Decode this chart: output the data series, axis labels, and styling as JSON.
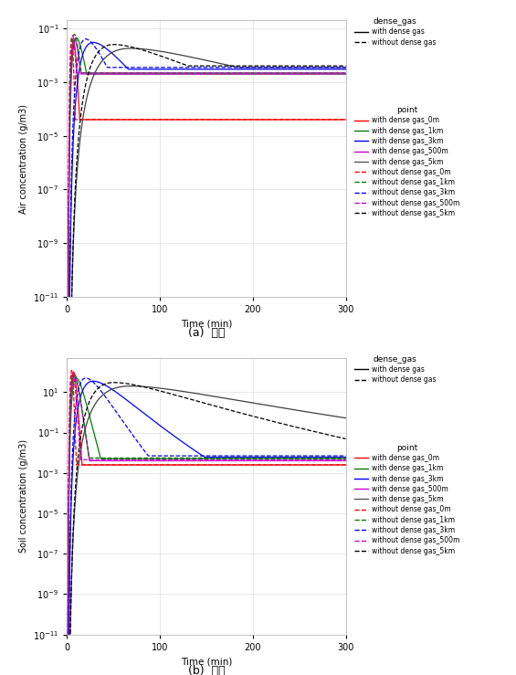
{
  "title_a": "(a)  대기",
  "title_b": "(b)  토양",
  "xlabel": "Time (min)",
  "ylabel_a": "Air concentration (g/m3)",
  "ylabel_b": "Soil concentration (g/m3)",
  "xmax": 300,
  "colors": {
    "0m": "#FF0000",
    "1km": "#008000",
    "3km": "#0000FF",
    "500m": "#CC00CC",
    "5km": "#000000"
  },
  "legend_dense_gas": [
    {
      "label": "with dense gas",
      "ls": "solid",
      "color": "#000000"
    },
    {
      "label": "without dense gas",
      "ls": "dashed",
      "color": "#000000"
    }
  ],
  "legend_points": [
    {
      "label": "with dense gas_0m",
      "color": "#FF0000",
      "ls": "solid"
    },
    {
      "label": "with dense gas_1km",
      "color": "#008000",
      "ls": "solid"
    },
    {
      "label": "with dense gas_3km",
      "color": "#0000FF",
      "ls": "solid"
    },
    {
      "label": "with dense gas_500m",
      "color": "#CC00CC",
      "ls": "solid"
    },
    {
      "label": "with dense gas_5km",
      "color": "#555555",
      "ls": "solid"
    },
    {
      "label": "without dense gas_0m",
      "color": "#FF0000",
      "ls": "dashed"
    },
    {
      "label": "without dense gas_1km",
      "color": "#008000",
      "ls": "dashed"
    },
    {
      "label": "without dense gas_3km",
      "color": "#0000FF",
      "ls": "dashed"
    },
    {
      "label": "without dense gas_500m",
      "color": "#CC00CC",
      "ls": "dashed"
    },
    {
      "label": "without dense gas_5km",
      "color": "#000000",
      "ls": "dashed"
    }
  ],
  "panel_bg": "#FFFFFF",
  "grid_color": "#DDDDDD",
  "fig_bg": "#FFFFFF"
}
